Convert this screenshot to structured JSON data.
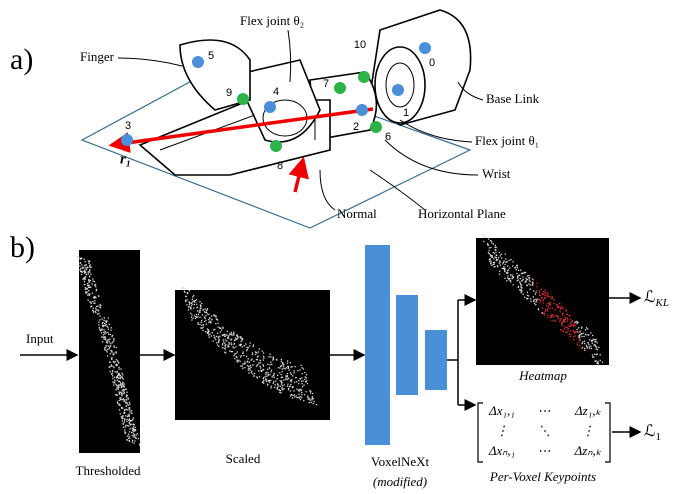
{
  "panel_a": {
    "label": "a)",
    "annotations": {
      "finger": "Finger",
      "flex_joint_2": "Flex joint θ₂",
      "base_link": "Base Link",
      "flex_joint_1": "Flex joint θ₁",
      "wrist": "Wrist",
      "normal": "Normal",
      "horizontal_plane": "Horizontal Plane"
    },
    "vector_label": "r₁",
    "keypoints": [
      "0",
      "1",
      "2",
      "3",
      "4",
      "5",
      "6",
      "7",
      "8",
      "9",
      "10"
    ]
  },
  "panel_b": {
    "label": "b)",
    "input": "Input",
    "thresholded": "Thresholded",
    "scaled": "Scaled",
    "network": "VoxelNeXt",
    "network_note": "(modified)",
    "heatmap": "Heatmap",
    "keypoints_caption": "Per-Voxel Keypoints",
    "loss_heatmap": {
      "symbol": "ℒ",
      "subscript": "KL"
    },
    "loss_keypoints": {
      "symbol": "ℒ",
      "subscript": "1"
    },
    "matrix": [
      [
        "Δx₁,₁",
        "⋯",
        "Δz₁,ₖ"
      ],
      [
        "⋮",
        "⋱",
        "⋮"
      ],
      [
        "Δxₙ,₁",
        "⋯",
        "Δzₙ,ₖ"
      ]
    ]
  }
}
